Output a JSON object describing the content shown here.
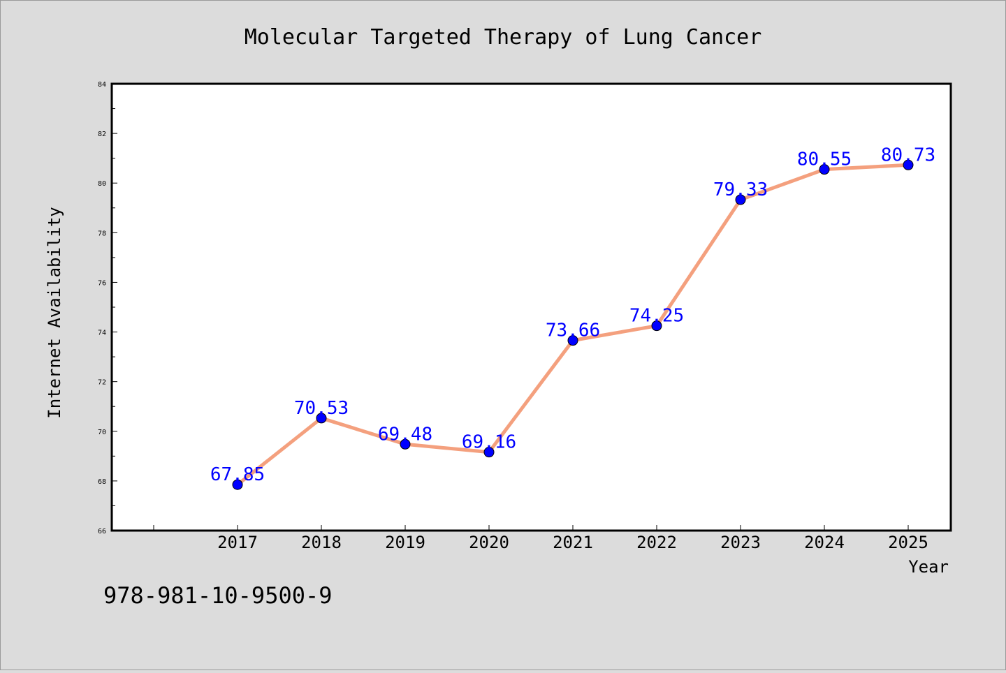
{
  "chart_data": {
    "type": "line",
    "title": "Molecular Targeted Therapy of Lung Cancer",
    "xlabel": "Year",
    "ylabel": "Internet Availability",
    "categories": [
      "2017",
      "2018",
      "2019",
      "2020",
      "2021",
      "2022",
      "2023",
      "2024",
      "2025"
    ],
    "series": [
      {
        "values": [
          67.85,
          70.53,
          69.48,
          69.16,
          73.66,
          74.25,
          79.33,
          80.55,
          80.73
        ],
        "labels": [
          "67.85",
          "70.53",
          "69.48",
          "69.16",
          "73.66",
          "74.25",
          "79.33",
          "80.55",
          "80.73"
        ]
      }
    ],
    "ylim": [
      66,
      84
    ],
    "yticks": [
      "66",
      "68",
      "70",
      "72",
      "74",
      "76",
      "78",
      "80",
      "82",
      "84"
    ],
    "grid": false,
    "legend": "none"
  },
  "annotation": "978-981-10-9500-9",
  "colors": {
    "background": "#dcdcdc",
    "plot_background": "#ffffff",
    "line": "#f4a07e",
    "marker": "#0000ff",
    "data_label": "#0000ff",
    "text": "#000000"
  }
}
